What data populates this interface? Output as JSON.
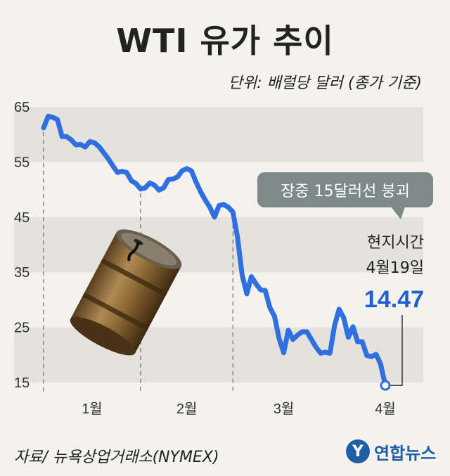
{
  "header": {
    "title": "WTI 유가 추이",
    "unit": "단위: 배럴당 달러 (종가 기준)"
  },
  "footer": {
    "source": "자료/ 뉴욕상업거래소(NYMEX)",
    "brand": "연합뉴스",
    "brand_logo": "Y"
  },
  "annotation": {
    "callout": "장중 15달러선 붕괴",
    "note_line1": "현지시간",
    "note_line2": "4월19일",
    "value": "14.47"
  },
  "colors": {
    "line": "#2f6fe0",
    "band": "#e4e2dc",
    "callout_bg": "#7e8a8a",
    "value": "#1f5fcf"
  },
  "icons": {
    "illustration": "oil-barrel-icon"
  },
  "chart_data": {
    "type": "line",
    "title": "WTI 유가 추이",
    "ylabel": "단위: 배럴당 달러 (종가 기준)",
    "ylim": [
      15,
      65
    ],
    "yticks": [
      15,
      25,
      35,
      45,
      55,
      65
    ],
    "months": [
      "1월",
      "2월",
      "3월",
      "4월"
    ],
    "month_boundaries_index": [
      0,
      21,
      41,
      63
    ],
    "grid": "alternating horizontal bands",
    "series": [
      {
        "values": [
          61.2,
          63.3,
          63.1,
          62.7,
          59.6,
          59.6,
          59.0,
          58.1,
          58.2,
          57.7,
          58.7,
          58.5,
          57.8,
          56.7,
          55.6,
          54.3,
          53.1,
          53.3,
          53.1,
          51.6,
          51.1,
          50.1,
          50.3,
          51.2,
          50.8,
          49.9,
          50.3,
          51.8,
          51.9,
          52.3,
          53.4,
          53.8,
          53.4,
          51.4,
          49.6,
          48.1,
          46.8,
          45.0,
          47.1,
          47.3,
          46.8,
          45.9,
          41.3,
          34.5,
          31.1,
          34.2,
          32.9,
          31.8,
          31.7,
          28.6,
          27.0,
          23.0,
          20.4,
          24.5,
          22.8,
          23.6,
          24.2,
          24.2,
          22.8,
          21.4,
          20.3,
          20.5,
          20.3,
          25.3,
          28.3,
          26.7,
          23.2,
          25.1,
          22.4,
          22.4,
          19.9,
          19.7,
          20.1,
          18.3,
          14.47
        ]
      }
    ]
  }
}
